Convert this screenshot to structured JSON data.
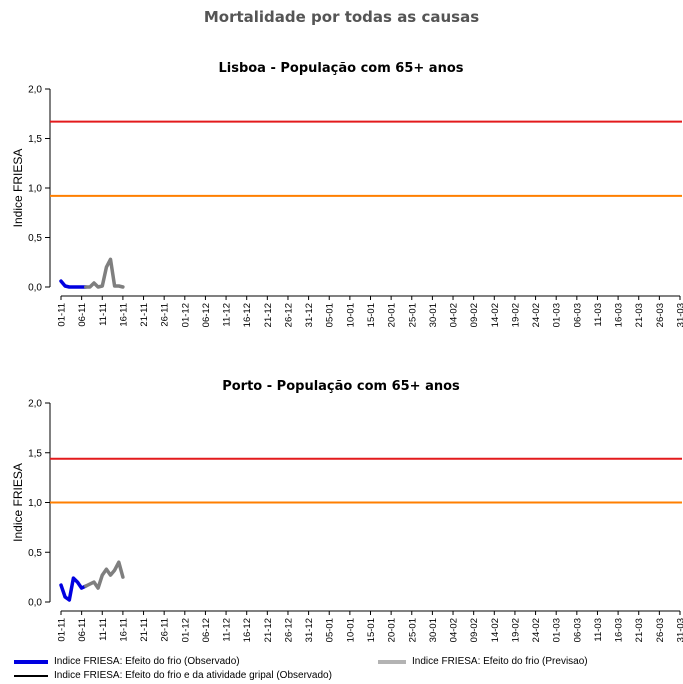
{
  "page_title": "Mortalidade por todas as causas",
  "colors": {
    "observed": "#0000e0",
    "forecast": "#7f7f7f",
    "forecast_legend": "#b3b3b3",
    "flu_observed": "#000000",
    "red_threshold": "#e31a1c",
    "orange_threshold": "#ff7f00"
  },
  "x_ticks": [
    "01-11",
    "06-11",
    "11-11",
    "16-11",
    "21-11",
    "26-11",
    "01-12",
    "06-12",
    "11-12",
    "16-12",
    "21-12",
    "26-12",
    "31-12",
    "05-01",
    "10-01",
    "15-01",
    "20-01",
    "25-01",
    "30-01",
    "04-02",
    "09-02",
    "14-02",
    "19-02",
    "24-02",
    "01-03",
    "06-03",
    "11-03",
    "16-03",
    "21-03",
    "26-03",
    "31-03"
  ],
  "legend": {
    "observed": "Indice FRIESA: Efeito do frio (Observado)",
    "forecast": "Indice FRIESA: Efeito do frio (Previsao)",
    "flu_observed": "Indice FRIESA: Efeito do frio e da atividade gripal (Observado)"
  },
  "chart_data": [
    {
      "type": "line",
      "title": "Lisboa - População com 65+ anos",
      "ylabel": "Indice FRIESA",
      "ylim": [
        0,
        2.0
      ],
      "y_ticks": [
        "0,0",
        "0,5",
        "1,0",
        "1,5",
        "2,0"
      ],
      "x_unit": "day index from 01-11",
      "thresholds": [
        {
          "value": 1.67,
          "color_key": "red_threshold"
        },
        {
          "value": 0.92,
          "color_key": "orange_threshold"
        }
      ],
      "series": [
        {
          "key": "observed",
          "x": [
            0,
            1,
            2,
            3,
            4,
            5,
            6
          ],
          "y": [
            0.06,
            0.01,
            0.0,
            0.0,
            0.0,
            0.0,
            0.0
          ]
        },
        {
          "key": "forecast",
          "x": [
            6,
            7,
            8,
            9,
            10,
            11,
            12,
            13,
            14,
            15
          ],
          "y": [
            0.0,
            0.0,
            0.04,
            0.0,
            0.01,
            0.2,
            0.28,
            0.01,
            0.01,
            0.0
          ]
        }
      ]
    },
    {
      "type": "line",
      "title": "Porto - População com 65+ anos",
      "ylabel": "Indice FRIESA",
      "ylim": [
        0,
        2.0
      ],
      "y_ticks": [
        "0,0",
        "0,5",
        "1,0",
        "1,5",
        "2,0"
      ],
      "x_unit": "day index from 01-11",
      "thresholds": [
        {
          "value": 1.44,
          "color_key": "red_threshold"
        },
        {
          "value": 1.0,
          "color_key": "orange_threshold"
        }
      ],
      "series": [
        {
          "key": "observed",
          "x": [
            0,
            1,
            2,
            3,
            4,
            5,
            6
          ],
          "y": [
            0.17,
            0.05,
            0.02,
            0.24,
            0.2,
            0.14,
            0.16
          ]
        },
        {
          "key": "forecast",
          "x": [
            6,
            7,
            8,
            9,
            10,
            11,
            12,
            13,
            14,
            15
          ],
          "y": [
            0.16,
            0.18,
            0.2,
            0.14,
            0.27,
            0.33,
            0.27,
            0.32,
            0.4,
            0.25
          ]
        }
      ]
    }
  ]
}
